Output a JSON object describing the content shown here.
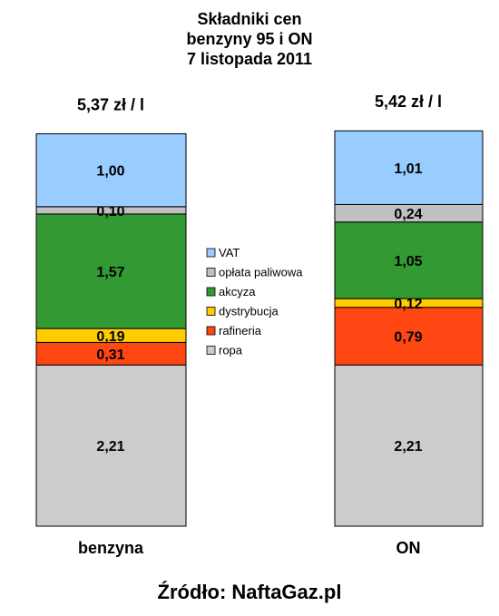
{
  "header": {
    "title_lines": [
      "Składniki cen",
      "benzyny 95 i ON",
      "7 listopada 2011"
    ]
  },
  "source": "Źródło: NaftaGaz.pl",
  "chart_data": {
    "type": "bar",
    "stacked": true,
    "categories": [
      "benzyna",
      "ON"
    ],
    "totals": [
      "5,37 zł / l",
      "5,42 zł / l"
    ],
    "series": [
      {
        "name": "ropa",
        "values": [
          2.21,
          2.21
        ],
        "labels": [
          "2,21",
          "2,21"
        ],
        "color": "#cccccc"
      },
      {
        "name": "rafineria",
        "values": [
          0.31,
          0.79
        ],
        "labels": [
          "0,31",
          "0,79"
        ],
        "color": "#ff4713"
      },
      {
        "name": "dystrybucja",
        "values": [
          0.19,
          0.12
        ],
        "labels": [
          "0,19",
          "0,12"
        ],
        "color": "#ffcc00"
      },
      {
        "name": "akcyza",
        "values": [
          1.57,
          1.05
        ],
        "labels": [
          "1,57",
          "1,05"
        ],
        "color": "#339933"
      },
      {
        "name": "opłata paliwowa",
        "values": [
          0.1,
          0.24
        ],
        "labels": [
          "0,10",
          "0,24"
        ],
        "color": "#c0c0c0"
      },
      {
        "name": "VAT",
        "values": [
          1.0,
          1.01
        ],
        "labels": [
          "1,00",
          "1,01"
        ],
        "color": "#99ccff"
      }
    ],
    "legend_order": [
      "VAT",
      "opłata paliwowa",
      "akcyza",
      "dystrybucja",
      "rafineria",
      "ropa"
    ],
    "legend_position": "center",
    "grid": false
  }
}
